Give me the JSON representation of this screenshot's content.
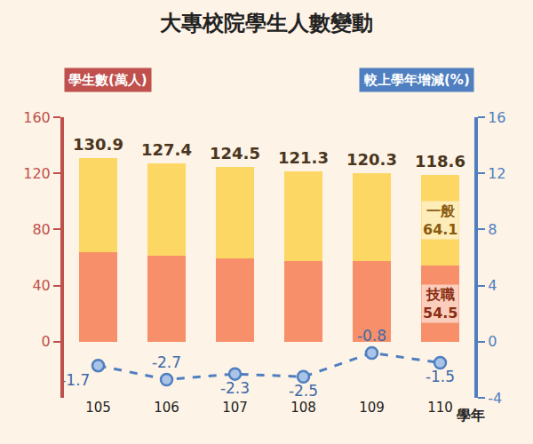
{
  "chart_data": {
    "type": "bar",
    "title": "大專校院學生人數變動",
    "ylabel": "學生數(萬人)",
    "y2label": "較上學年增減(%)",
    "xlabel": "學年",
    "categories": [
      "105",
      "106",
      "107",
      "108",
      "109",
      "110"
    ],
    "stacked": true,
    "data_labels": true,
    "grid": false,
    "ylim": [
      -40,
      160
    ],
    "yticks": [
      0,
      40,
      80,
      120,
      160
    ],
    "y2lim": [
      -4,
      16
    ],
    "y2ticks": [
      -4,
      0,
      4,
      8,
      12,
      16
    ],
    "totals": [
      130.9,
      127.4,
      124.5,
      121.3,
      120.3,
      118.6
    ],
    "series": [
      {
        "name": "技職",
        "type": "bar",
        "color": "#f7906a",
        "values": [
          63.9,
          61.3,
          59.4,
          57.4,
          57.4,
          54.5
        ],
        "value_labels": [
          null,
          null,
          null,
          null,
          null,
          "54.5"
        ]
      },
      {
        "name": "一般",
        "type": "bar",
        "color": "#fdd764",
        "values": [
          67.0,
          66.1,
          65.1,
          63.9,
          62.9,
          64.1
        ],
        "value_labels": [
          null,
          null,
          null,
          null,
          null,
          "64.1"
        ]
      },
      {
        "type": "line",
        "axis": "y2",
        "color": "#4f7fc0",
        "marker": "circle",
        "line_style": "dash",
        "values": [
          -1.7,
          -2.7,
          -2.3,
          -2.5,
          -0.8,
          -1.5
        ]
      }
    ]
  }
}
